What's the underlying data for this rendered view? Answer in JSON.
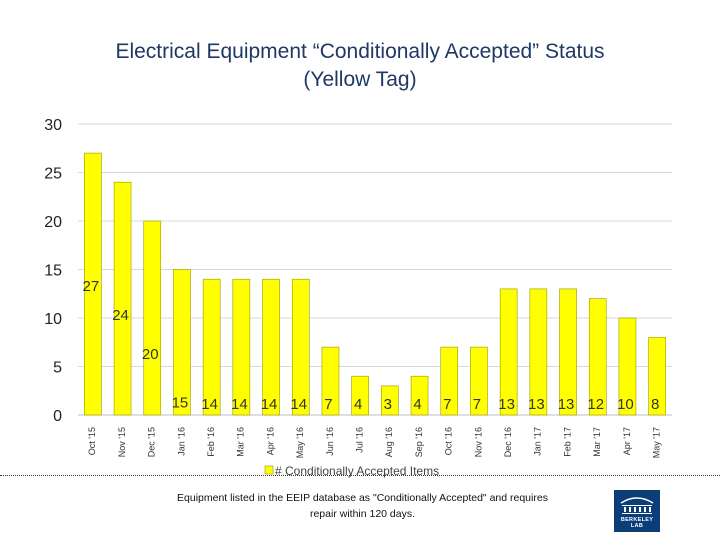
{
  "slide": {
    "title_line1": "Electrical Equipment “Conditionally Accepted” Status",
    "title_line2": "(Yellow Tag)",
    "footer_line1": "Equipment listed in the EEIP database as \"Conditionally Accepted\" and requires",
    "footer_line2": "repair within 120 days.",
    "logo_text": "BERKELEY LAB"
  },
  "colors": {
    "bar_fill": "#ffff00",
    "bar_stroke": "#9a9a00",
    "grid": "#d9d9d9",
    "title": "#1f3864",
    "logo_bg": "#0b3d78"
  },
  "chart_data": {
    "type": "bar",
    "title": "",
    "xlabel": "",
    "ylabel": "",
    "ylim": [
      0,
      30
    ],
    "yticks": [
      0,
      5,
      10,
      15,
      20,
      25,
      30
    ],
    "grid": true,
    "legend_position": "bottom",
    "categories": [
      "Oct '15",
      "Nov '15",
      "Dec '15",
      "Jan '16",
      "Feb '16",
      "Mar '16",
      "Apr '16",
      "May '16",
      "Jun '16",
      "Jul '16",
      "Aug '16",
      "Sep '16",
      "Oct '16",
      "Nov '16",
      "Dec '16",
      "Jan '17",
      "Feb '17",
      "Mar '17",
      "Apr '17",
      "May '17"
    ],
    "series": [
      {
        "name": "# Conditionally Accepted Items",
        "values": [
          27,
          24,
          20,
          15,
          14,
          14,
          14,
          14,
          7,
          4,
          3,
          4,
          7,
          7,
          13,
          13,
          13,
          12,
          10,
          8
        ]
      }
    ]
  }
}
